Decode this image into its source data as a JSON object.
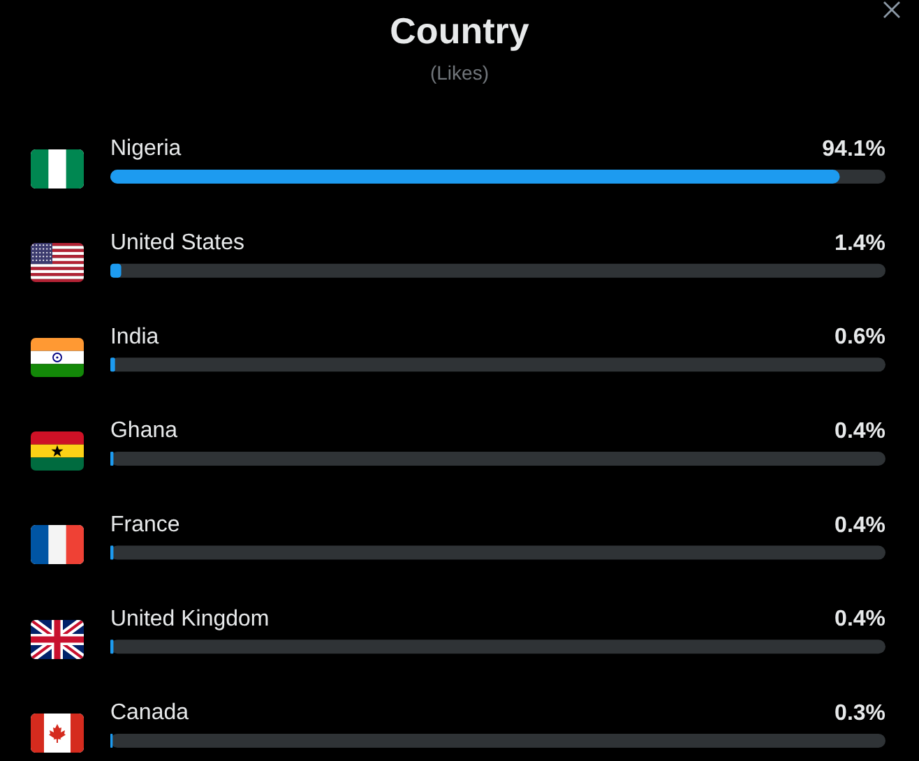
{
  "chart_data": {
    "type": "bar",
    "orientation": "horizontal",
    "title": "Country",
    "subtitle": "(Likes)",
    "categories": [
      "Nigeria",
      "United States",
      "India",
      "Ghana",
      "France",
      "United Kingdom",
      "Canada"
    ],
    "values": [
      94.1,
      1.4,
      0.6,
      0.4,
      0.4,
      0.4,
      0.3
    ],
    "value_labels": [
      "94.1%",
      "1.4%",
      "0.6%",
      "0.4%",
      "0.4%",
      "0.4%",
      "0.3%"
    ],
    "color": "#1d9bf0",
    "xlim": [
      0,
      100
    ],
    "tick_labels": "y"
  }
}
